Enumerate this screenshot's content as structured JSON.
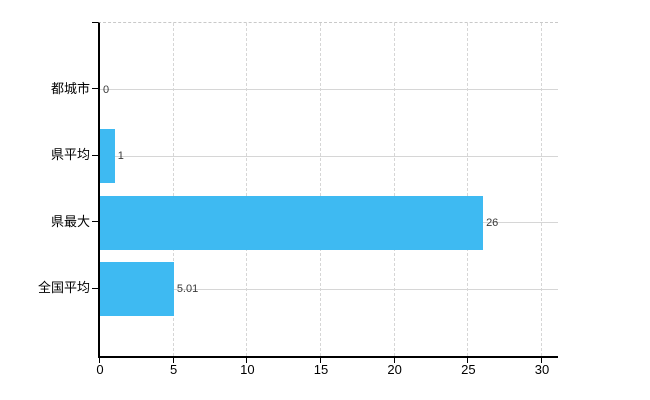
{
  "chart_data": {
    "type": "bar",
    "orientation": "horizontal",
    "categories": [
      "都城市",
      "県平均",
      "県最大",
      "全国平均"
    ],
    "values": [
      0,
      1,
      26,
      5.01
    ],
    "value_labels": [
      "0",
      "1",
      "26",
      "5.01"
    ],
    "title": "",
    "xlabel": "",
    "ylabel": "",
    "xlim": [
      0,
      30
    ],
    "x_ticks": [
      0,
      5,
      10,
      15,
      20,
      25,
      30
    ],
    "x_tick_labels": [
      "0",
      "5",
      "10",
      "15",
      "20",
      "25",
      "30"
    ],
    "grid": "on",
    "legend": "none",
    "bar_color": "#3EBAF2",
    "grid_color": "#d6d6d6",
    "axis_color": "#000000",
    "value_label_color": "#3a3a3a",
    "background_color": "#ffffff"
  }
}
